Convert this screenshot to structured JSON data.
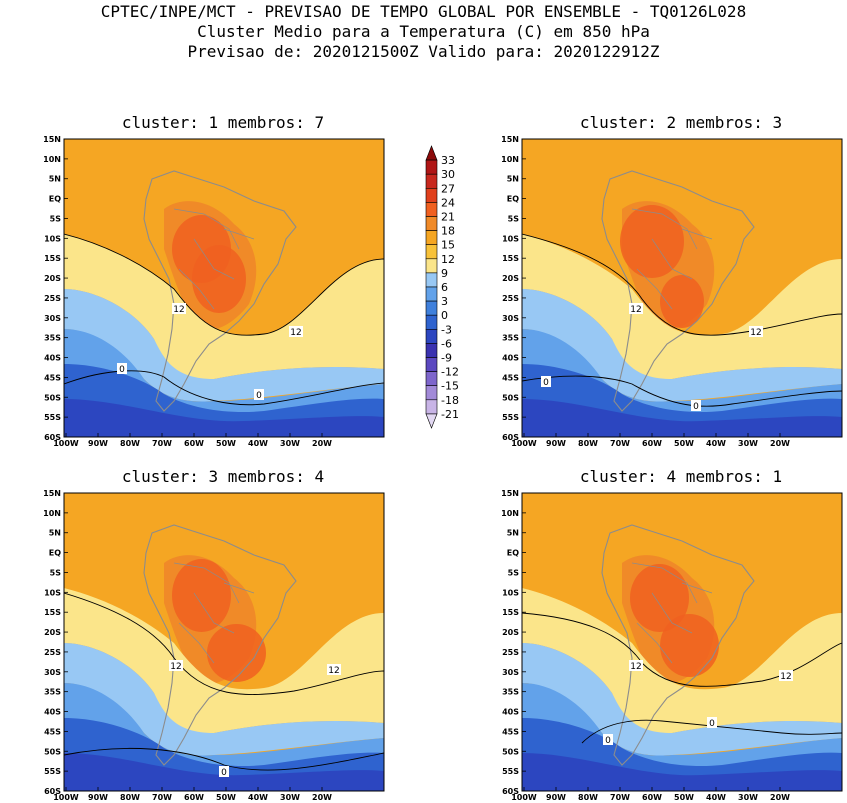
{
  "header": {
    "line1": "CPTEC/INPE/MCT - PREVISAO DE TEMPO GLOBAL POR ENSEMBLE - TQ0126L028",
    "line2": "Cluster Medio para a Temperatura (C) em 850 hPa",
    "line3": "Previsao de: 2020121500Z   Valido para: 2020122912Z"
  },
  "panels": [
    {
      "title": "cluster: 1  membros: 7"
    },
    {
      "title": "cluster: 2  membros: 3"
    },
    {
      "title": "cluster: 3  membros: 4"
    },
    {
      "title": "cluster: 4  membros: 1"
    }
  ],
  "lat_labels": [
    "15N",
    "10N",
    "5N",
    "EQ",
    "5S",
    "10S",
    "15S",
    "20S",
    "25S",
    "30S",
    "35S",
    "40S",
    "45S",
    "50S",
    "55S",
    "60S"
  ],
  "lon_labels": [
    "100W",
    "90W",
    "80W",
    "70W",
    "60W",
    "50W",
    "40W",
    "30W",
    "20W"
  ],
  "contour_labels": {
    "c12": "12",
    "c0": "0"
  },
  "colorbar": {
    "labels": [
      "33",
      "30",
      "27",
      "24",
      "21",
      "18",
      "15",
      "12",
      "9",
      "6",
      "3",
      "0",
      "-3",
      "-6",
      "-9",
      "-12",
      "-15",
      "-18",
      "-21"
    ],
    "colors": [
      "#8b0a0a",
      "#b01616",
      "#c8281e",
      "#e0401c",
      "#f06020",
      "#f08a28",
      "#f5a623",
      "#f8c23a",
      "#fbe58a",
      "#98c8f4",
      "#62a2ea",
      "#3f80dc",
      "#2f63cf",
      "#2c46c0",
      "#3a32b0",
      "#5b48c0",
      "#7e66cc",
      "#a28ad8",
      "#c8b4e6",
      "#e2d8f2"
    ]
  },
  "colors": {
    "warm_orange": "#f5a623",
    "mid_orange": "#f08a28",
    "hot": "#f06020",
    "pale_yellow": "#fbe58a",
    "light_blue": "#98c8f4",
    "mid_blue": "#3f80dc",
    "deep_blue": "#2c46c0",
    "violet": "#5b48c0",
    "land_gray": "#8c8c8c"
  }
}
